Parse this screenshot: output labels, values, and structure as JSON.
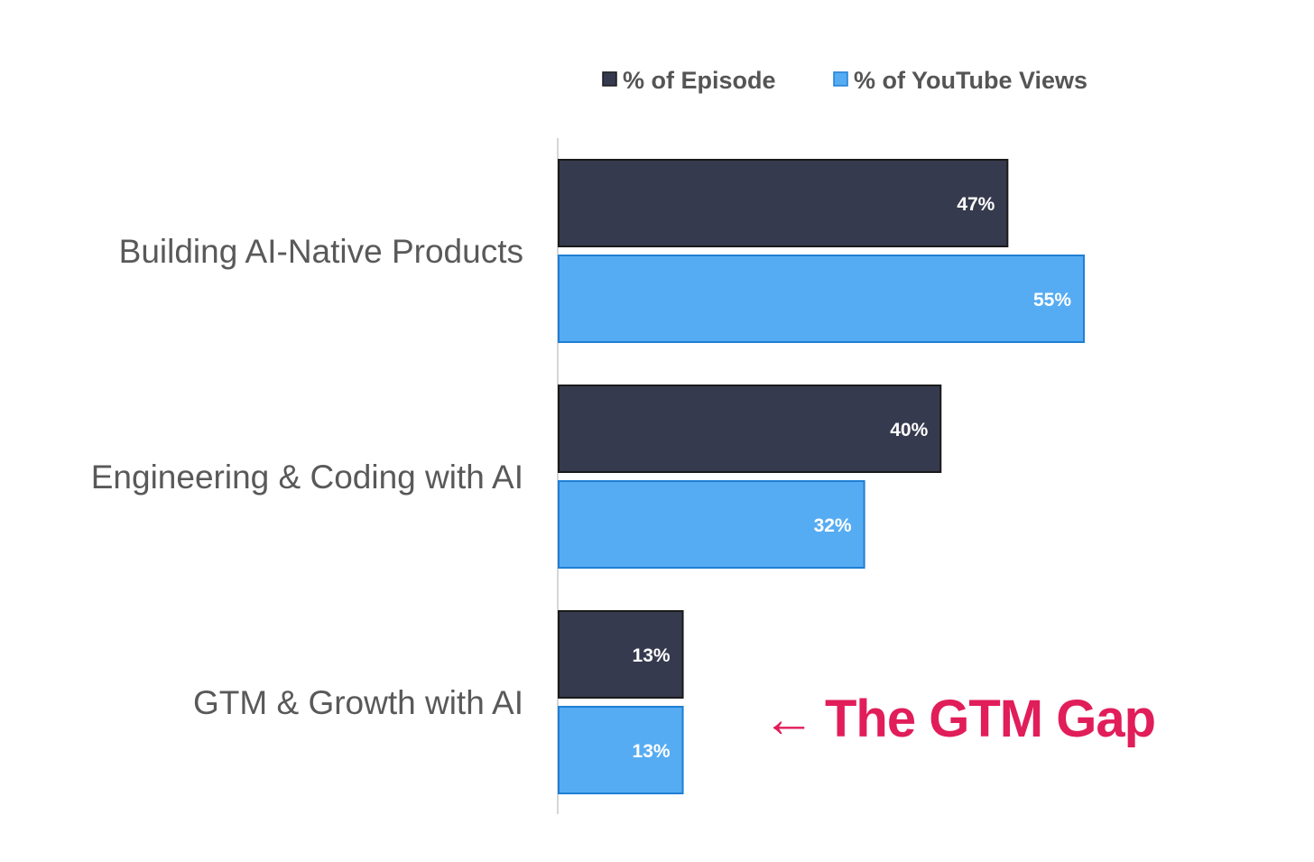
{
  "chart_data": {
    "type": "bar",
    "orientation": "horizontal",
    "categories": [
      "Building AI-Native Products",
      "Engineering & Coding with AI",
      "GTM & Growth with AI"
    ],
    "series": [
      {
        "name": "% of Episode",
        "values": [
          47,
          40,
          13
        ],
        "labels": [
          "47%",
          "40%",
          "13%"
        ],
        "color": "#363a4e"
      },
      {
        "name": "% of YouTube Views",
        "values": [
          55,
          32,
          13
        ],
        "labels": [
          "55%",
          "32%",
          "13%"
        ],
        "color": "#56acf2"
      }
    ],
    "xlim": [
      0,
      60
    ],
    "legend_position": "top",
    "gridlines": false,
    "annotation": {
      "text": "The GTM Gap",
      "arrow": "←",
      "color": "#e11d5a",
      "target_category": "GTM & Growth with AI"
    }
  }
}
